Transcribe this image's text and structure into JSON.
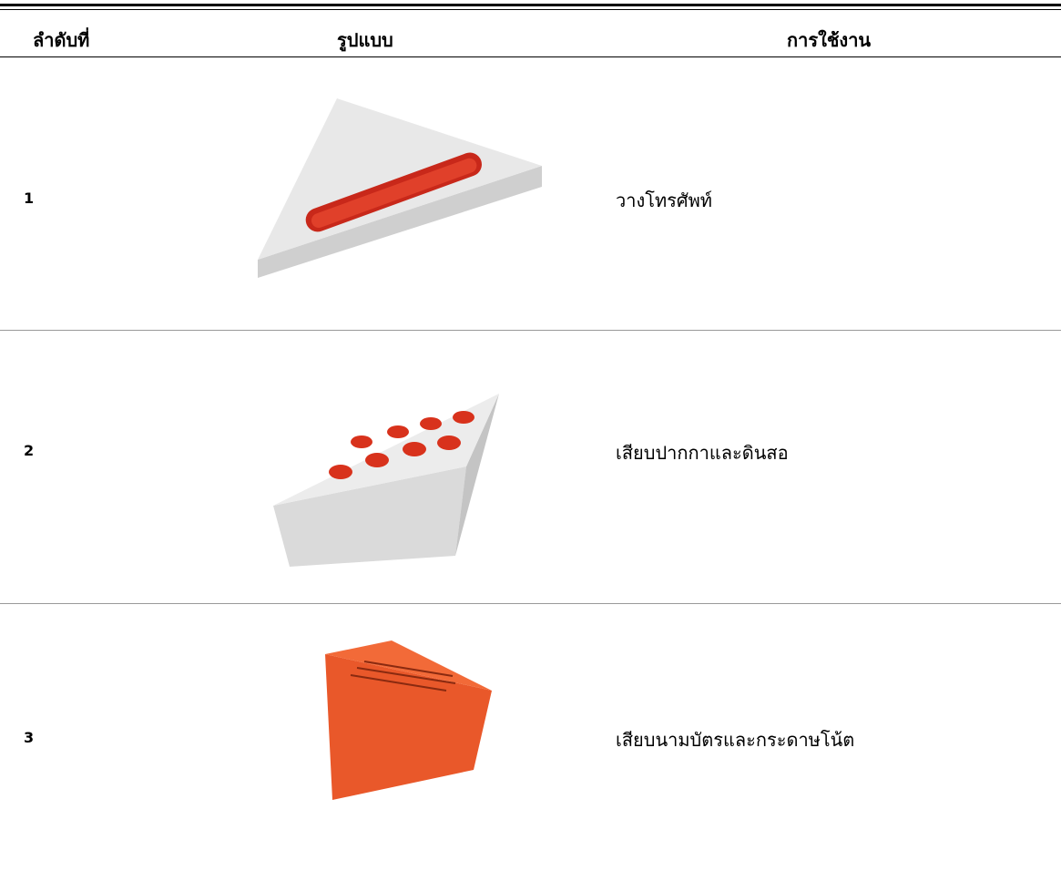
{
  "table": {
    "header": [
      "ลำดับที่",
      "รูปแบบ",
      "การใช้งาน"
    ],
    "rows": [
      [
        "1",
        "วางโทรศัพท์"
      ],
      [
        "2",
        "เสียบปากกาและดินสอ"
      ],
      [
        "3",
        "เสียบนามบัตรและกระดาษโน้ต"
      ]
    ]
  }
}
